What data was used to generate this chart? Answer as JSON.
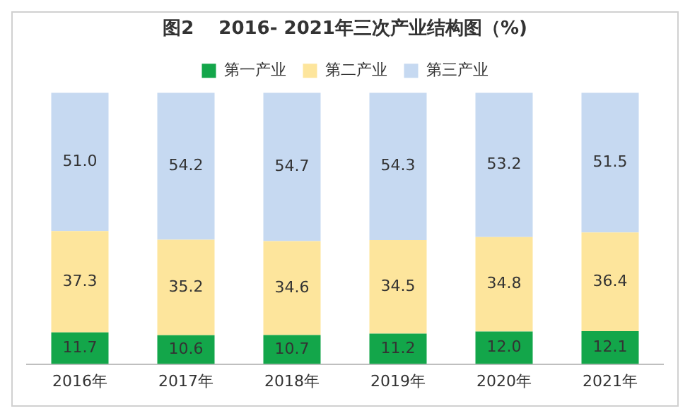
{
  "chart_data": {
    "type": "bar",
    "title": "图2　 2016- 2021年三次产业结构图（%)",
    "stacked": true,
    "legend": "top",
    "grid": false,
    "tick_labels": "x",
    "categories": [
      "2016年",
      "2017年",
      "2018年",
      "2019年",
      "2020年",
      "2021年"
    ],
    "series": [
      {
        "name": "第一产业",
        "color": "#13a64a",
        "values": [
          11.7,
          10.6,
          10.7,
          11.2,
          12.0,
          12.1
        ],
        "value_labels": [
          "11.7",
          "10.6",
          "10.7",
          "11.2",
          "12.0",
          "12.1"
        ]
      },
      {
        "name": "第二产业",
        "color": "#fde59c",
        "values": [
          37.3,
          35.2,
          34.6,
          34.5,
          34.8,
          36.4
        ],
        "value_labels": [
          "37.3",
          "35.2",
          "34.6",
          "34.5",
          "34.8",
          "36.4"
        ]
      },
      {
        "name": "第三产业",
        "color": "#c6d9f1",
        "values": [
          51.0,
          54.2,
          54.7,
          54.3,
          53.2,
          51.5
        ],
        "value_labels": [
          "51.0",
          "54.2",
          "54.7",
          "54.3",
          "53.2",
          "51.5"
        ]
      }
    ]
  }
}
